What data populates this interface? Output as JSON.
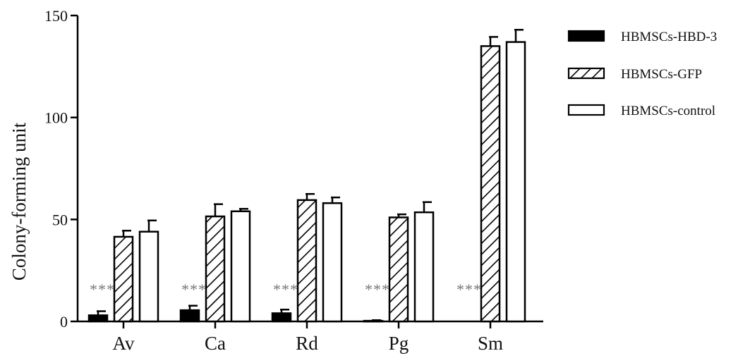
{
  "chart_data": {
    "type": "bar",
    "ylabel": "Colony-forming unit",
    "xlabel": "",
    "ylim": [
      0,
      150
    ],
    "yticks": [
      0,
      50,
      100,
      150
    ],
    "grid": false,
    "legend_position": "top-right",
    "categories": [
      "Av",
      "Ca",
      "Rd",
      "Pg",
      "Sm"
    ],
    "series": [
      {
        "name": "HBMSCs-HBD-3",
        "style": "solid-black",
        "values": [
          3,
          5.5,
          4,
          0.3,
          0
        ],
        "errors": [
          2,
          2.2,
          1.8,
          0.3,
          0
        ]
      },
      {
        "name": "HBMSCs-GFP",
        "style": "hatched",
        "values": [
          41.5,
          51.5,
          59.5,
          51,
          135
        ],
        "errors": [
          3,
          6,
          3,
          1.5,
          4.5
        ]
      },
      {
        "name": "HBMSCs-control",
        "style": "white",
        "values": [
          44,
          54,
          58,
          53.5,
          137
        ],
        "errors": [
          5.5,
          1.2,
          2.8,
          5,
          6
        ]
      }
    ],
    "annotations": [
      "***",
      "***",
      "***",
      "***",
      "***"
    ]
  },
  "colors": {
    "axis": "#000000",
    "bar_fill_dark": "#000000",
    "bar_fill_light": "#ffffff",
    "annotation": "#777777"
  }
}
